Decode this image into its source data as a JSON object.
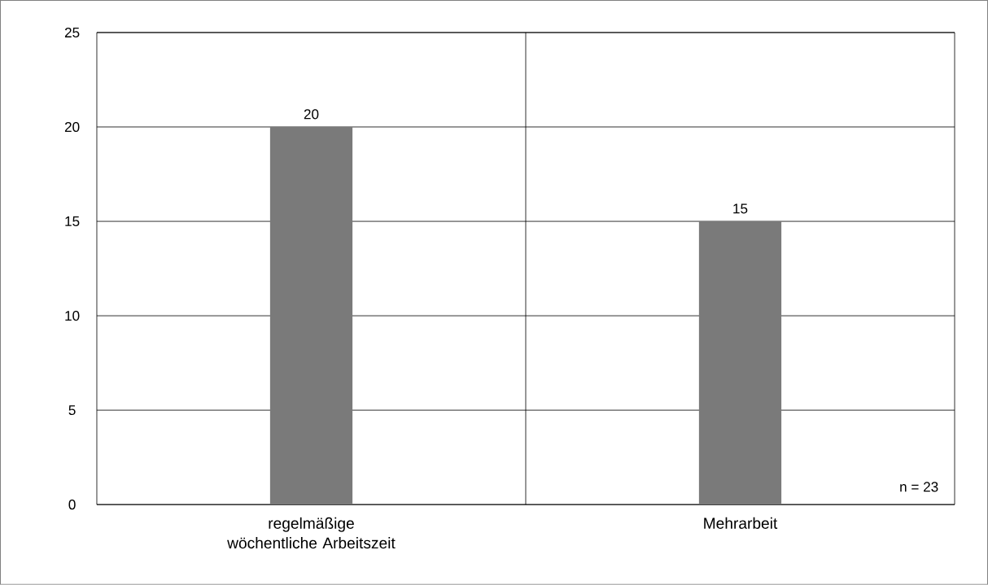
{
  "chart_data": {
    "type": "bar",
    "categories": [
      "regelmäßige wöchentliche Arbeitszeit",
      "Mehrarbeit"
    ],
    "values": [
      20,
      15
    ],
    "color": "#7a7a7a",
    "ylim": [
      0,
      25
    ],
    "yticks": [
      0,
      5,
      10,
      15,
      20,
      25
    ],
    "grid": "y",
    "data_labels": true,
    "annotations": [
      "n = 23"
    ]
  }
}
